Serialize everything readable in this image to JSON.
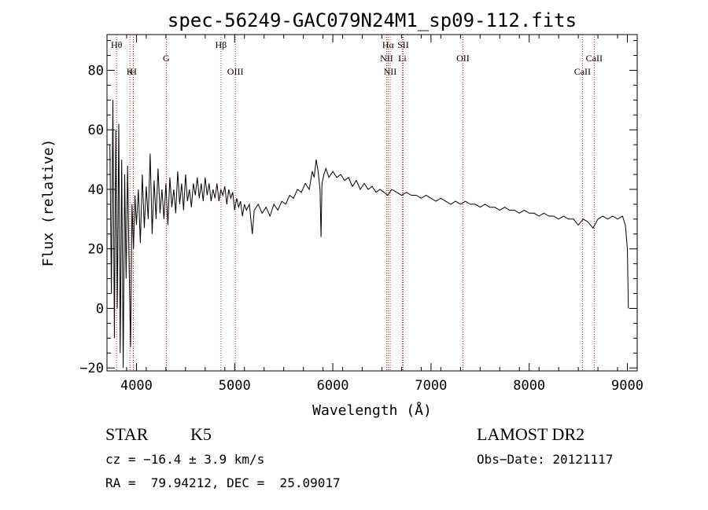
{
  "chart_data": {
    "type": "line",
    "title": "spec-56249-GAC079N24M1_sp09-112.fits",
    "xlabel": "Wavelength (Å)",
    "ylabel": "Flux (relative)",
    "xlim": [
      3700,
      9100
    ],
    "ylim": [
      -21,
      92
    ],
    "x_ticks": [
      4000,
      5000,
      6000,
      7000,
      8000,
      9000
    ],
    "y_ticks": [
      -20,
      0,
      20,
      40,
      60,
      80
    ],
    "grid": false,
    "line_color": "#000000",
    "marker_color": "#b22222",
    "series": [
      {
        "values": [
          [
            3730,
            55
          ],
          [
            3745,
            5
          ],
          [
            3760,
            70
          ],
          [
            3775,
            -10
          ],
          [
            3790,
            60
          ],
          [
            3805,
            0
          ],
          [
            3820,
            62
          ],
          [
            3835,
            -15
          ],
          [
            3850,
            50
          ],
          [
            3865,
            -20
          ],
          [
            3880,
            45
          ],
          [
            3895,
            10
          ],
          [
            3910,
            48
          ],
          [
            3925,
            15
          ],
          [
            3940,
            -13
          ],
          [
            3955,
            35
          ],
          [
            3970,
            20
          ],
          [
            3985,
            38
          ],
          [
            4000,
            28
          ],
          [
            4020,
            40
          ],
          [
            4040,
            22
          ],
          [
            4060,
            45
          ],
          [
            4080,
            27
          ],
          [
            4100,
            41
          ],
          [
            4120,
            30
          ],
          [
            4140,
            52
          ],
          [
            4160,
            25
          ],
          [
            4180,
            43
          ],
          [
            4200,
            30
          ],
          [
            4220,
            47
          ],
          [
            4240,
            32
          ],
          [
            4260,
            40
          ],
          [
            4280,
            30
          ],
          [
            4300,
            42
          ],
          [
            4320,
            28
          ],
          [
            4340,
            44
          ],
          [
            4360,
            34
          ],
          [
            4380,
            40
          ],
          [
            4400,
            32
          ],
          [
            4420,
            46
          ],
          [
            4440,
            35
          ],
          [
            4460,
            42
          ],
          [
            4480,
            33
          ],
          [
            4500,
            45
          ],
          [
            4520,
            36
          ],
          [
            4540,
            40
          ],
          [
            4560,
            34
          ],
          [
            4580,
            42
          ],
          [
            4600,
            38
          ],
          [
            4620,
            44
          ],
          [
            4640,
            37
          ],
          [
            4660,
            42
          ],
          [
            4680,
            36
          ],
          [
            4700,
            44
          ],
          [
            4720,
            38
          ],
          [
            4740,
            42
          ],
          [
            4760,
            36
          ],
          [
            4780,
            40
          ],
          [
            4800,
            37
          ],
          [
            4820,
            42
          ],
          [
            4840,
            36
          ],
          [
            4860,
            40
          ],
          [
            4880,
            38
          ],
          [
            4900,
            41
          ],
          [
            4920,
            35
          ],
          [
            4940,
            40
          ],
          [
            4960,
            37
          ],
          [
            4980,
            39
          ],
          [
            5000,
            33
          ],
          [
            5020,
            37
          ],
          [
            5040,
            34
          ],
          [
            5060,
            36
          ],
          [
            5080,
            31
          ],
          [
            5100,
            35
          ],
          [
            5120,
            33
          ],
          [
            5150,
            35
          ],
          [
            5180,
            25
          ],
          [
            5200,
            33
          ],
          [
            5240,
            35
          ],
          [
            5280,
            32
          ],
          [
            5320,
            34
          ],
          [
            5360,
            31
          ],
          [
            5400,
            35
          ],
          [
            5440,
            33
          ],
          [
            5480,
            36
          ],
          [
            5520,
            35
          ],
          [
            5560,
            38
          ],
          [
            5600,
            37
          ],
          [
            5640,
            40
          ],
          [
            5680,
            39
          ],
          [
            5720,
            42
          ],
          [
            5760,
            40
          ],
          [
            5790,
            46
          ],
          [
            5810,
            44
          ],
          [
            5830,
            50
          ],
          [
            5850,
            46
          ],
          [
            5870,
            40
          ],
          [
            5880,
            24
          ],
          [
            5890,
            42
          ],
          [
            5910,
            45
          ],
          [
            5930,
            47
          ],
          [
            5960,
            44
          ],
          [
            6000,
            46
          ],
          [
            6040,
            44
          ],
          [
            6080,
            45
          ],
          [
            6120,
            43
          ],
          [
            6160,
            44
          ],
          [
            6200,
            41
          ],
          [
            6240,
            43
          ],
          [
            6280,
            40
          ],
          [
            6320,
            42
          ],
          [
            6360,
            40
          ],
          [
            6400,
            41
          ],
          [
            6440,
            39
          ],
          [
            6480,
            40
          ],
          [
            6520,
            39
          ],
          [
            6560,
            38
          ],
          [
            6600,
            40
          ],
          [
            6650,
            39
          ],
          [
            6700,
            38
          ],
          [
            6750,
            39
          ],
          [
            6800,
            38
          ],
          [
            6850,
            38
          ],
          [
            6900,
            37
          ],
          [
            6950,
            38
          ],
          [
            7000,
            37
          ],
          [
            7050,
            36
          ],
          [
            7100,
            37
          ],
          [
            7150,
            36
          ],
          [
            7200,
            35
          ],
          [
            7250,
            36
          ],
          [
            7300,
            35
          ],
          [
            7350,
            36
          ],
          [
            7400,
            35
          ],
          [
            7450,
            35
          ],
          [
            7500,
            34
          ],
          [
            7550,
            35
          ],
          [
            7600,
            34
          ],
          [
            7650,
            34
          ],
          [
            7700,
            33
          ],
          [
            7750,
            34
          ],
          [
            7800,
            33
          ],
          [
            7850,
            33
          ],
          [
            7900,
            32
          ],
          [
            7950,
            33
          ],
          [
            8000,
            32
          ],
          [
            8050,
            32
          ],
          [
            8100,
            31
          ],
          [
            8150,
            32
          ],
          [
            8200,
            31
          ],
          [
            8250,
            31
          ],
          [
            8300,
            30
          ],
          [
            8350,
            31
          ],
          [
            8400,
            30
          ],
          [
            8450,
            30
          ],
          [
            8500,
            28
          ],
          [
            8550,
            30
          ],
          [
            8600,
            29
          ],
          [
            8650,
            27
          ],
          [
            8700,
            30
          ],
          [
            8750,
            31
          ],
          [
            8800,
            30
          ],
          [
            8850,
            31
          ],
          [
            8900,
            30
          ],
          [
            8950,
            31
          ],
          [
            8980,
            28
          ],
          [
            9000,
            20
          ],
          [
            9010,
            0
          ]
        ]
      }
    ],
    "line_markers": [
      {
        "label": "Hθ",
        "x": 3798,
        "row": 1
      },
      {
        "label": "H",
        "x": 3969,
        "row": 3
      },
      {
        "label": "K",
        "x": 3934,
        "row": 3
      },
      {
        "label": "G",
        "x": 4304,
        "row": 2
      },
      {
        "label": "Hβ",
        "x": 4861,
        "row": 1
      },
      {
        "label": "OIII",
        "x": 5007,
        "row": 3
      },
      {
        "label": "Hα",
        "x": 6563,
        "row": 1
      },
      {
        "label": "SII",
        "x": 6716,
        "row": 1
      },
      {
        "label": "NII",
        "x": 6548,
        "row": 2
      },
      {
        "label": "Li",
        "x": 6708,
        "row": 2
      },
      {
        "label": "NII",
        "x": 6584,
        "row": 3
      },
      {
        "label": "OII",
        "x": 7325,
        "row": 2
      },
      {
        "label": "CaII",
        "x": 8542,
        "row": 3
      },
      {
        "label": "CaII",
        "x": 8662,
        "row": 2
      }
    ]
  },
  "info": {
    "class": "STAR",
    "subclass": "K5",
    "survey": "LAMOST DR2",
    "cz": "cz = −16.4 ± 3.9 km/s",
    "obs_date": "Obs−Date: 20121117",
    "coords": "RA =  79.94212, DEC =  25.09017"
  }
}
